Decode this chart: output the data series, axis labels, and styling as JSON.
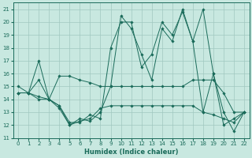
{
  "xlabel": "Humidex (Indice chaleur)",
  "bg_color": "#c8e8e0",
  "grid_color": "#a0c8c0",
  "line_color": "#1a6b5a",
  "xlim": [
    -0.5,
    22.5
  ],
  "ylim": [
    11,
    21.5
  ],
  "yticks": [
    11,
    12,
    13,
    14,
    15,
    16,
    17,
    18,
    19,
    20,
    21
  ],
  "xticks": [
    0,
    1,
    2,
    3,
    4,
    5,
    6,
    7,
    8,
    9,
    10,
    11,
    12,
    13,
    14,
    15,
    16,
    17,
    18,
    19,
    20,
    21,
    22
  ],
  "series": [
    [
      14.5,
      14.5,
      17.0,
      14.0,
      15.8,
      15.8,
      15.5,
      15.3,
      15.0,
      15.0,
      15.0,
      15.0,
      15.0,
      15.0,
      15.0,
      15.0,
      15.0,
      15.5,
      15.5,
      15.5,
      14.5,
      13.0,
      13.0
    ],
    [
      14.5,
      14.5,
      15.5,
      14.0,
      13.5,
      12.2,
      12.2,
      12.8,
      12.5,
      18.0,
      20.0,
      20.0,
      16.5,
      17.5,
      20.0,
      19.0,
      20.8,
      18.5,
      21.0,
      16.0,
      13.0,
      11.5,
      13.0
    ],
    [
      14.5,
      14.5,
      14.0,
      14.0,
      13.5,
      12.0,
      12.5,
      12.3,
      13.0,
      15.0,
      20.5,
      19.5,
      17.5,
      15.5,
      19.5,
      18.5,
      21.0,
      18.5,
      13.0,
      16.0,
      12.0,
      12.5,
      13.0
    ],
    [
      15.0,
      14.5,
      14.2,
      14.0,
      13.3,
      12.0,
      12.3,
      12.5,
      13.3,
      13.5,
      13.5,
      13.5,
      13.5,
      13.5,
      13.5,
      13.5,
      13.5,
      13.5,
      13.0,
      12.8,
      12.5,
      12.2,
      13.0
    ]
  ]
}
